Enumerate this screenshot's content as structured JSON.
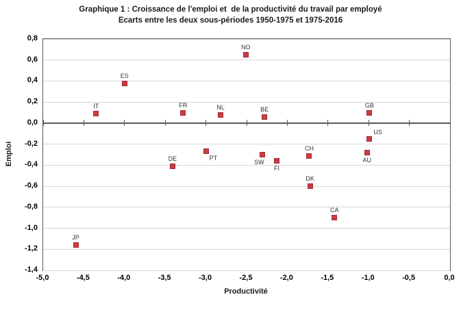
{
  "chart_data": {
    "type": "scatter",
    "title": "Graphique 1 : Croissance de l'emploi et  de la productivité du travail par employé",
    "subtitle": "Ecarts entre les deux sous-périodes 1950-1975 et 1975-2016",
    "xlabel": "Productivité",
    "ylabel": "Emploi",
    "xlim": [
      -5.0,
      0.0
    ],
    "ylim": [
      -1.4,
      0.8
    ],
    "grid": "horizontal",
    "legend": "none",
    "colors": {
      "marker_fill": "#cb3c43",
      "marker_border": "#a32a31",
      "gridline": "#d6d6d6",
      "axis_line": "#595959",
      "background": "#ffffff",
      "tick_text": "#000000",
      "point_label_text": "#333333"
    },
    "x_ticks": [
      {
        "value": -5.0,
        "label": "-5,0"
      },
      {
        "value": -4.5,
        "label": "-4,5"
      },
      {
        "value": -4.0,
        "label": "-4,0"
      },
      {
        "value": -3.5,
        "label": "-3,5"
      },
      {
        "value": -3.0,
        "label": "-3,0"
      },
      {
        "value": -2.5,
        "label": "-2,5"
      },
      {
        "value": -2.0,
        "label": "-2,0"
      },
      {
        "value": -1.5,
        "label": "-1,5"
      },
      {
        "value": -1.0,
        "label": "-1,0"
      },
      {
        "value": -0.5,
        "label": "-0,5"
      },
      {
        "value": 0.0,
        "label": "0,0"
      }
    ],
    "y_ticks": [
      {
        "value": 0.8,
        "label": "0,8"
      },
      {
        "value": 0.6,
        "label": "0,6"
      },
      {
        "value": 0.4,
        "label": "0,4"
      },
      {
        "value": 0.2,
        "label": "0,2"
      },
      {
        "value": 0.0,
        "label": "0,0"
      },
      {
        "value": -0.2,
        "label": "-0,2"
      },
      {
        "value": -0.4,
        "label": "-0,4"
      },
      {
        "value": -0.6,
        "label": "-0,6"
      },
      {
        "value": -0.8,
        "label": "-0,8"
      },
      {
        "value": -1.0,
        "label": "-1,0"
      },
      {
        "value": -1.2,
        "label": "-1,2"
      },
      {
        "value": -1.4,
        "label": "-1,4"
      }
    ],
    "points": [
      {
        "label": "JP",
        "x": -4.6,
        "y": -1.16,
        "label_pos": "above"
      },
      {
        "label": "IT",
        "x": -4.35,
        "y": 0.09,
        "label_pos": "above"
      },
      {
        "label": "ES",
        "x": -4.0,
        "y": 0.38,
        "label_pos": "above"
      },
      {
        "label": "DE",
        "x": -3.41,
        "y": -0.41,
        "label_pos": "above"
      },
      {
        "label": "FR",
        "x": -3.28,
        "y": 0.1,
        "label_pos": "above"
      },
      {
        "label": "PT",
        "x": -3.0,
        "y": -0.27,
        "label_pos": "below-right"
      },
      {
        "label": "NL",
        "x": -2.82,
        "y": 0.08,
        "label_pos": "above"
      },
      {
        "label": "NO",
        "x": -2.51,
        "y": 0.65,
        "label_pos": "above"
      },
      {
        "label": "BE",
        "x": -2.28,
        "y": 0.06,
        "label_pos": "above"
      },
      {
        "label": "SW",
        "x": -2.31,
        "y": -0.3,
        "label_pos": "below-left"
      },
      {
        "label": "FI",
        "x": -2.13,
        "y": -0.36,
        "label_pos": "below"
      },
      {
        "label": "CH",
        "x": -1.73,
        "y": -0.31,
        "label_pos": "above"
      },
      {
        "label": "DK",
        "x": -1.72,
        "y": -0.6,
        "label_pos": "above"
      },
      {
        "label": "CA",
        "x": -1.42,
        "y": -0.9,
        "label_pos": "above"
      },
      {
        "label": "GB",
        "x": -0.99,
        "y": 0.1,
        "label_pos": "above"
      },
      {
        "label": "US",
        "x": -0.99,
        "y": -0.15,
        "label_pos": "above-right"
      },
      {
        "label": "AU",
        "x": -1.02,
        "y": -0.28,
        "label_pos": "below"
      }
    ]
  }
}
